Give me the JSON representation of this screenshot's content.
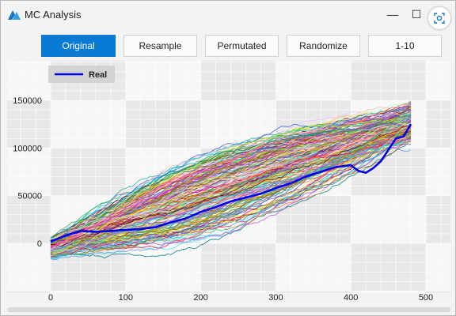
{
  "window": {
    "title": "MC Analysis",
    "minimize": "—",
    "maximize": "☐"
  },
  "toolbar": {
    "buttons": [
      "Original",
      "Resample",
      "Permutated",
      "Randomize",
      "1-10"
    ],
    "active": 0
  },
  "colors": {
    "accent": "#0a7bd5",
    "real_series": "#0000ee"
  },
  "chart_data": {
    "type": "line",
    "xlim": [
      0,
      500
    ],
    "ylim": [
      0,
      150000
    ],
    "x_ticks": [
      "0",
      "100",
      "200",
      "300",
      "400",
      "500"
    ],
    "y_ticks": [
      "0",
      "50000",
      "100000",
      "150000"
    ],
    "legend_position": "top-left",
    "grid": true,
    "series": [
      {
        "name": "Real",
        "x": [
          0,
          20,
          40,
          60,
          80,
          100,
          120,
          140,
          160,
          180,
          200,
          220,
          240,
          260,
          280,
          300,
          320,
          340,
          360,
          380,
          400,
          410,
          420,
          430,
          440,
          450,
          460,
          470,
          480
        ],
        "values": [
          2000,
          8000,
          13000,
          12000,
          13000,
          14000,
          15000,
          17000,
          22000,
          26000,
          33000,
          38000,
          44000,
          48000,
          52000,
          58000,
          63000,
          70000,
          75000,
          80000,
          82000,
          76000,
          74000,
          79000,
          86000,
          98000,
          110000,
          112000,
          125000
        ]
      }
    ],
    "simulations": {
      "count": 200,
      "x_end": 480,
      "start_range": [
        -15000,
        5000
      ],
      "end_range": [
        110000,
        145000
      ],
      "spread_max": 40000
    }
  }
}
